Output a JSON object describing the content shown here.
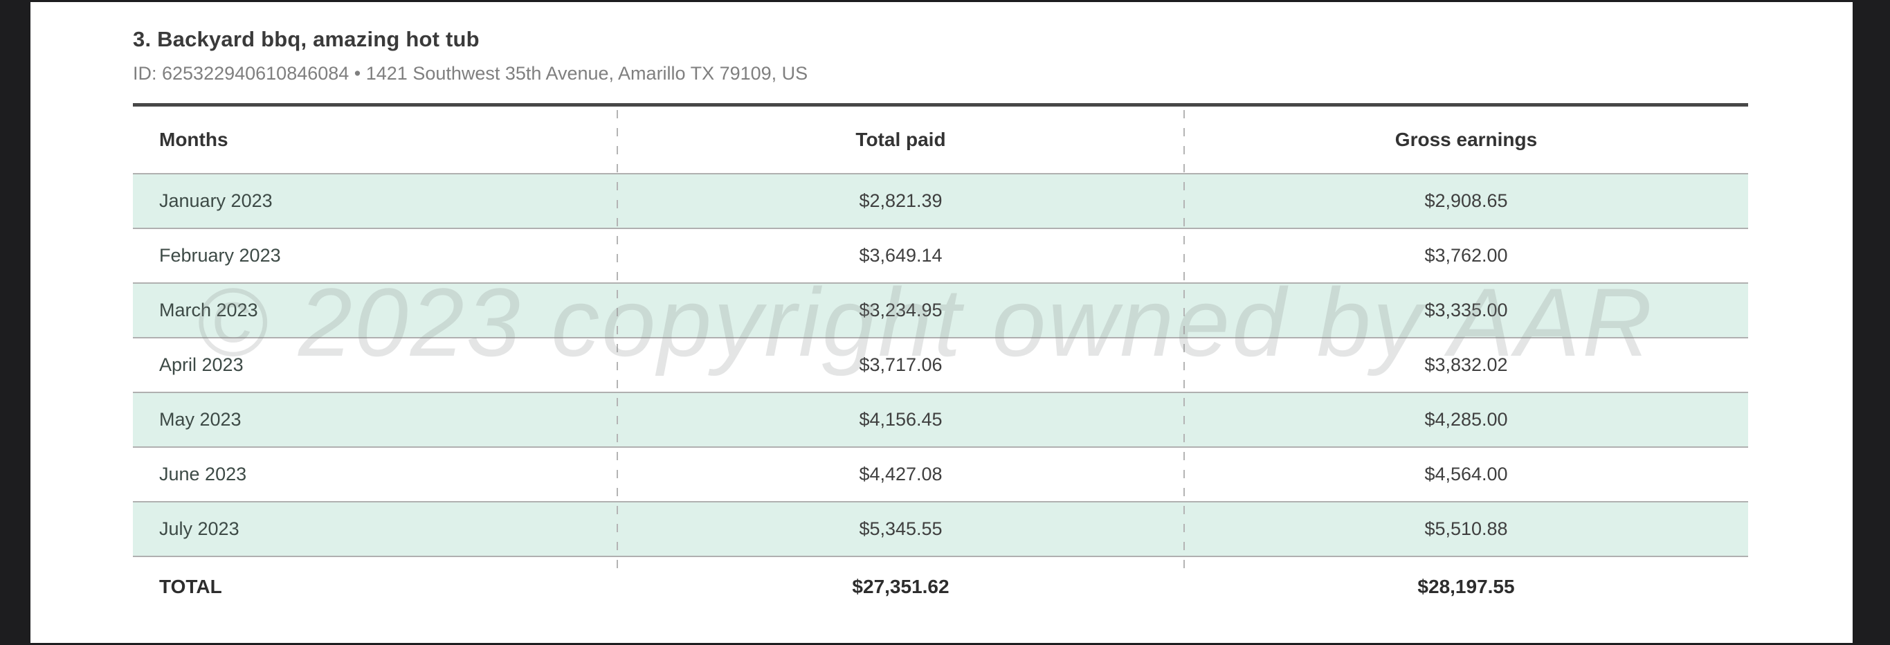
{
  "listing": {
    "title": "3. Backyard bbq, amazing hot tub",
    "id_line": "ID: 625322940610846084 • 1421 Southwest 35th Avenue, Amarillo TX 79109, US"
  },
  "watermark": "© 2023 copyright owned by AAR",
  "colors": {
    "row_highlight": "#def1ea",
    "table_top_border": "#474747",
    "row_border": "#b0b0b0",
    "viewer_background": "#1d1d1f"
  },
  "table": {
    "columns": [
      "Months",
      "Total paid",
      "Gross earnings"
    ],
    "rows": [
      {
        "month": "January 2023",
        "total_paid": "$2,821.39",
        "gross_earnings": "$2,908.65"
      },
      {
        "month": "February 2023",
        "total_paid": "$3,649.14",
        "gross_earnings": "$3,762.00"
      },
      {
        "month": "March 2023",
        "total_paid": "$3,234.95",
        "gross_earnings": "$3,335.00"
      },
      {
        "month": "April 2023",
        "total_paid": "$3,717.06",
        "gross_earnings": "$3,832.02"
      },
      {
        "month": "May 2023",
        "total_paid": "$4,156.45",
        "gross_earnings": "$4,285.00"
      },
      {
        "month": "June 2023",
        "total_paid": "$4,427.08",
        "gross_earnings": "$4,564.00"
      },
      {
        "month": "July 2023",
        "total_paid": "$5,345.55",
        "gross_earnings": "$5,510.88"
      }
    ],
    "total_row": {
      "label": "TOTAL",
      "total_paid": "$27,351.62",
      "gross_earnings": "$28,197.55"
    }
  }
}
